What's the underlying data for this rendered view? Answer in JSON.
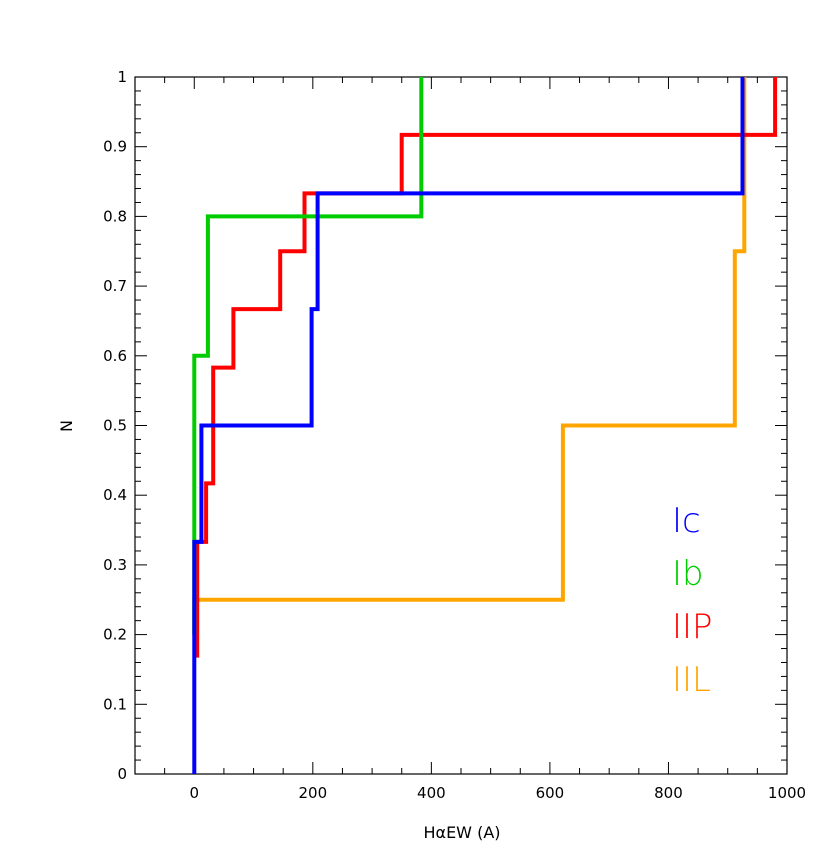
{
  "chart_data": {
    "type": "line",
    "title": "",
    "xlabel": "HαEW (A)",
    "ylabel": "N",
    "xlim": [
      -100,
      1000
    ],
    "ylim": [
      0,
      1
    ],
    "x_ticks": [
      "0",
      "200",
      "400",
      "600",
      "800",
      "1000"
    ],
    "y_ticks": [
      "0",
      "0.1",
      "0.2",
      "0.3",
      "0.4",
      "0.5",
      "0.6",
      "0.7",
      "0.8",
      "0.9",
      "1"
    ],
    "grid": false,
    "legend_position": "bottom-right",
    "step": "post",
    "series": [
      {
        "name": "Ic",
        "color": "#0000ff",
        "points": [
          [
            0,
            0
          ],
          [
            0,
            0.333
          ],
          [
            12,
            0.333
          ],
          [
            12,
            0.5
          ],
          [
            198,
            0.5
          ],
          [
            198,
            0.667
          ],
          [
            208,
            0.667
          ],
          [
            208,
            0.833
          ],
          [
            925,
            0.833
          ],
          [
            925,
            1.0
          ]
        ]
      },
      {
        "name": "Ib",
        "color": "#00cc00",
        "points": [
          [
            0,
            0.2
          ],
          [
            0,
            0.6
          ],
          [
            23,
            0.6
          ],
          [
            23,
            0.8
          ],
          [
            383,
            0.8
          ],
          [
            383,
            1.0
          ]
        ]
      },
      {
        "name": "IIP",
        "color": "#ff0000",
        "points": [
          [
            5,
            0.167
          ],
          [
            5,
            0.333
          ],
          [
            20,
            0.333
          ],
          [
            20,
            0.417
          ],
          [
            32,
            0.417
          ],
          [
            32,
            0.583
          ],
          [
            50,
            0.583
          ],
          [
            50,
            0.583
          ],
          [
            66,
            0.583
          ],
          [
            66,
            0.667
          ],
          [
            145,
            0.667
          ],
          [
            145,
            0.75
          ],
          [
            186,
            0.75
          ],
          [
            186,
            0.833
          ],
          [
            350,
            0.833
          ],
          [
            350,
            0.917
          ],
          [
            980,
            0.917
          ],
          [
            980,
            1.0
          ]
        ]
      },
      {
        "name": "IIL",
        "color": "#ffa500",
        "points": [
          [
            0,
            0.2
          ],
          [
            0,
            0.25
          ],
          [
            622,
            0.25
          ],
          [
            622,
            0.5
          ],
          [
            912,
            0.5
          ],
          [
            912,
            0.75
          ],
          [
            928,
            0.75
          ],
          [
            928,
            1.0
          ]
        ]
      }
    ]
  }
}
